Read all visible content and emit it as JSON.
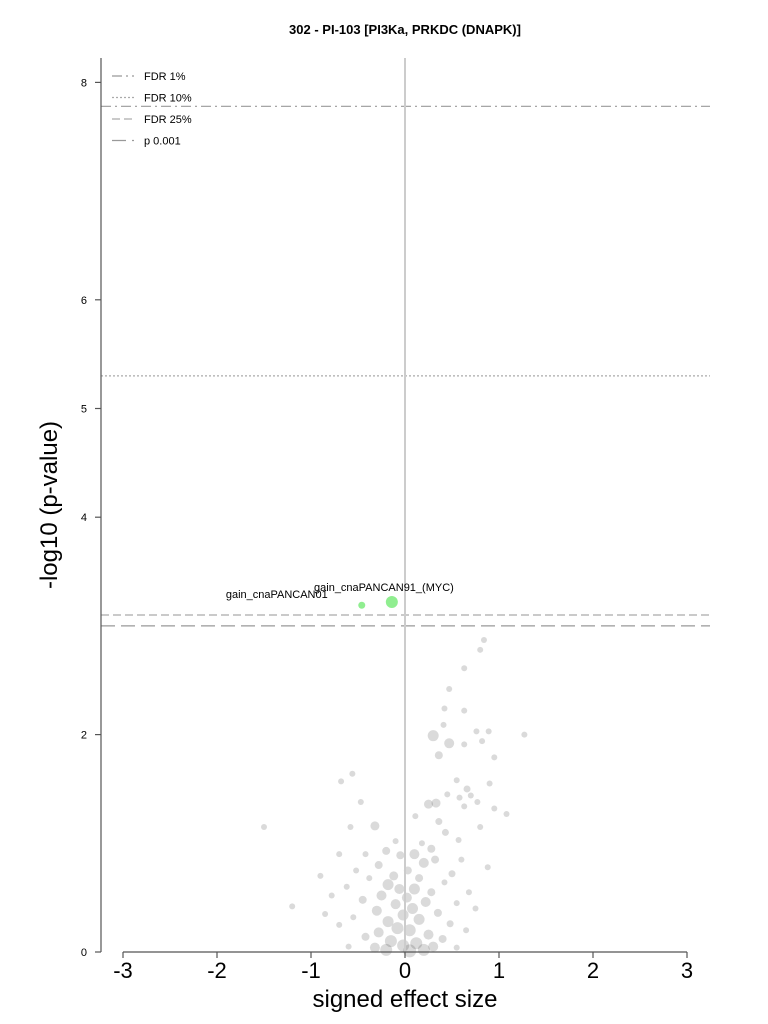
{
  "chart_data": {
    "type": "scatter",
    "title": "302 - PI-103 [PI3Ka, PRKDC (DNAPK)]",
    "xlabel": "signed effect size",
    "ylabel": "-log10 (p-value)",
    "xlim": [
      -3.2,
      3.25
    ],
    "ylim": [
      0,
      8.25
    ],
    "xticks": [
      -3,
      -2,
      -1,
      0,
      1,
      2,
      3
    ],
    "xtick_labels": [
      "-3",
      "-2",
      "-1",
      "0",
      "1",
      "2",
      "3"
    ],
    "yticks": [
      0,
      2,
      4,
      5,
      6,
      8
    ],
    "ytick_labels": [
      "0",
      "2",
      "4",
      "5",
      "6",
      "8"
    ],
    "grid": false,
    "legend_position": "top-left",
    "thresholds": [
      {
        "label": "FDR 1%",
        "y": 7.78,
        "style": "dashdot",
        "color": "#999999"
      },
      {
        "label": "FDR 10%",
        "y": 5.3,
        "style": "dotted",
        "color": "#aaaaaa"
      },
      {
        "label": "FDR 25%",
        "y": 3.1,
        "style": "dashed",
        "color": "#aaaaaa"
      },
      {
        "label": "p 0.001",
        "y": 3.0,
        "style": "longdash",
        "color": "#999999"
      }
    ],
    "highlighted": [
      {
        "label": "gain_cnaPANCAN91_(MYC)",
        "x": -0.14,
        "y": 3.22,
        "size": 6,
        "color": "#90ee90"
      },
      {
        "label": "gain_cnaPANCAN01",
        "x": -0.46,
        "y": 3.19,
        "size": 3.5,
        "color": "#90ee90"
      }
    ],
    "points": [
      {
        "x": 0.84,
        "y": 2.87,
        "s": 3
      },
      {
        "x": 0.8,
        "y": 2.78,
        "s": 3
      },
      {
        "x": 0.63,
        "y": 2.61,
        "s": 3
      },
      {
        "x": 0.47,
        "y": 2.42,
        "s": 3
      },
      {
        "x": 0.42,
        "y": 2.24,
        "s": 3
      },
      {
        "x": 0.63,
        "y": 2.22,
        "s": 3
      },
      {
        "x": 0.41,
        "y": 2.09,
        "s": 3
      },
      {
        "x": 0.3,
        "y": 1.99,
        "s": 5.5
      },
      {
        "x": 0.47,
        "y": 1.92,
        "s": 5
      },
      {
        "x": 0.76,
        "y": 2.03,
        "s": 3
      },
      {
        "x": 0.89,
        "y": 2.03,
        "s": 3
      },
      {
        "x": 1.27,
        "y": 2.0,
        "s": 3
      },
      {
        "x": 0.36,
        "y": 1.81,
        "s": 4
      },
      {
        "x": 0.63,
        "y": 1.91,
        "s": 3
      },
      {
        "x": 0.95,
        "y": 1.79,
        "s": 3
      },
      {
        "x": 0.82,
        "y": 1.94,
        "s": 3
      },
      {
        "x": -0.56,
        "y": 1.64,
        "s": 3
      },
      {
        "x": -0.68,
        "y": 1.57,
        "s": 3
      },
      {
        "x": 0.55,
        "y": 1.58,
        "s": 3
      },
      {
        "x": 0.66,
        "y": 1.5,
        "s": 3.5
      },
      {
        "x": 0.58,
        "y": 1.42,
        "s": 3
      },
      {
        "x": 0.7,
        "y": 1.44,
        "s": 3
      },
      {
        "x": 0.33,
        "y": 1.37,
        "s": 4.5
      },
      {
        "x": 0.25,
        "y": 1.36,
        "s": 4.5
      },
      {
        "x": 0.63,
        "y": 1.34,
        "s": 3
      },
      {
        "x": 0.77,
        "y": 1.38,
        "s": 3
      },
      {
        "x": 0.95,
        "y": 1.32,
        "s": 3
      },
      {
        "x": 1.08,
        "y": 1.27,
        "s": 3
      },
      {
        "x": -0.47,
        "y": 1.38,
        "s": 3
      },
      {
        "x": 0.11,
        "y": 1.25,
        "s": 3
      },
      {
        "x": 0.36,
        "y": 1.2,
        "s": 3.5
      },
      {
        "x": -0.32,
        "y": 1.16,
        "s": 4.5
      },
      {
        "x": -0.58,
        "y": 1.15,
        "s": 3
      },
      {
        "x": -1.5,
        "y": 1.15,
        "s": 3
      },
      {
        "x": 0.43,
        "y": 1.1,
        "s": 3.5
      },
      {
        "x": 0.18,
        "y": 1.0,
        "s": 3
      },
      {
        "x": -0.1,
        "y": 1.02,
        "s": 3
      },
      {
        "x": 0.57,
        "y": 1.03,
        "s": 3
      },
      {
        "x": 0.28,
        "y": 0.95,
        "s": 4
      },
      {
        "x": -0.2,
        "y": 0.93,
        "s": 4
      },
      {
        "x": 0.1,
        "y": 0.9,
        "s": 5
      },
      {
        "x": -0.05,
        "y": 0.89,
        "s": 4
      },
      {
        "x": -0.7,
        "y": 0.9,
        "s": 3
      },
      {
        "x": -0.42,
        "y": 0.9,
        "s": 3
      },
      {
        "x": 0.32,
        "y": 0.85,
        "s": 4
      },
      {
        "x": 0.2,
        "y": 0.82,
        "s": 5
      },
      {
        "x": 0.88,
        "y": 0.78,
        "s": 3
      },
      {
        "x": -0.28,
        "y": 0.8,
        "s": 4
      },
      {
        "x": 0.03,
        "y": 0.75,
        "s": 4
      },
      {
        "x": -0.52,
        "y": 0.75,
        "s": 3
      },
      {
        "x": 0.5,
        "y": 0.72,
        "s": 3.5
      },
      {
        "x": -0.12,
        "y": 0.7,
        "s": 4.5
      },
      {
        "x": 0.15,
        "y": 0.68,
        "s": 4
      },
      {
        "x": -0.38,
        "y": 0.68,
        "s": 3
      },
      {
        "x": 0.42,
        "y": 0.64,
        "s": 3
      },
      {
        "x": -0.18,
        "y": 0.62,
        "s": 5.5
      },
      {
        "x": -0.06,
        "y": 0.58,
        "s": 5
      },
      {
        "x": 0.1,
        "y": 0.58,
        "s": 5.5
      },
      {
        "x": -0.62,
        "y": 0.6,
        "s": 3
      },
      {
        "x": 0.28,
        "y": 0.55,
        "s": 4
      },
      {
        "x": 0.68,
        "y": 0.55,
        "s": 3
      },
      {
        "x": -0.25,
        "y": 0.52,
        "s": 5
      },
      {
        "x": 0.02,
        "y": 0.5,
        "s": 5
      },
      {
        "x": -0.78,
        "y": 0.52,
        "s": 3
      },
      {
        "x": -0.45,
        "y": 0.48,
        "s": 4
      },
      {
        "x": 0.22,
        "y": 0.46,
        "s": 5
      },
      {
        "x": 0.55,
        "y": 0.45,
        "s": 3
      },
      {
        "x": -0.1,
        "y": 0.44,
        "s": 5
      },
      {
        "x": 0.08,
        "y": 0.4,
        "s": 5.5
      },
      {
        "x": -0.3,
        "y": 0.38,
        "s": 5
      },
      {
        "x": 0.35,
        "y": 0.36,
        "s": 4
      },
      {
        "x": -0.02,
        "y": 0.34,
        "s": 5.5
      },
      {
        "x": -0.55,
        "y": 0.32,
        "s": 3
      },
      {
        "x": -1.2,
        "y": 0.42,
        "s": 3
      },
      {
        "x": 0.15,
        "y": 0.3,
        "s": 5.5
      },
      {
        "x": -0.18,
        "y": 0.28,
        "s": 5.5
      },
      {
        "x": 0.48,
        "y": 0.26,
        "s": 3.5
      },
      {
        "x": -0.08,
        "y": 0.22,
        "s": 6
      },
      {
        "x": 0.05,
        "y": 0.2,
        "s": 6
      },
      {
        "x": -0.28,
        "y": 0.18,
        "s": 5
      },
      {
        "x": 0.25,
        "y": 0.16,
        "s": 5
      },
      {
        "x": -0.42,
        "y": 0.14,
        "s": 4
      },
      {
        "x": 0.4,
        "y": 0.12,
        "s": 4
      },
      {
        "x": -0.15,
        "y": 0.1,
        "s": 6
      },
      {
        "x": 0.12,
        "y": 0.08,
        "s": 6
      },
      {
        "x": -0.02,
        "y": 0.06,
        "s": 6
      },
      {
        "x": 0.3,
        "y": 0.05,
        "s": 5
      },
      {
        "x": -0.32,
        "y": 0.04,
        "s": 5
      },
      {
        "x": 0.55,
        "y": 0.04,
        "s": 3
      },
      {
        "x": -0.6,
        "y": 0.05,
        "s": 3
      },
      {
        "x": 0.2,
        "y": 0.02,
        "s": 6
      },
      {
        "x": -0.2,
        "y": 0.02,
        "s": 6
      },
      {
        "x": 0.05,
        "y": 0.01,
        "s": 6.5
      },
      {
        "x": 0.65,
        "y": 0.2,
        "s": 3
      },
      {
        "x": -0.7,
        "y": 0.25,
        "s": 3
      },
      {
        "x": 0.75,
        "y": 0.4,
        "s": 3
      },
      {
        "x": -0.85,
        "y": 0.35,
        "s": 3
      },
      {
        "x": 0.6,
        "y": 0.85,
        "s": 3
      },
      {
        "x": -0.9,
        "y": 0.7,
        "s": 3
      },
      {
        "x": 0.8,
        "y": 1.15,
        "s": 3
      },
      {
        "x": 0.45,
        "y": 1.45,
        "s": 3
      },
      {
        "x": 0.9,
        "y": 1.55,
        "s": 3
      }
    ]
  }
}
